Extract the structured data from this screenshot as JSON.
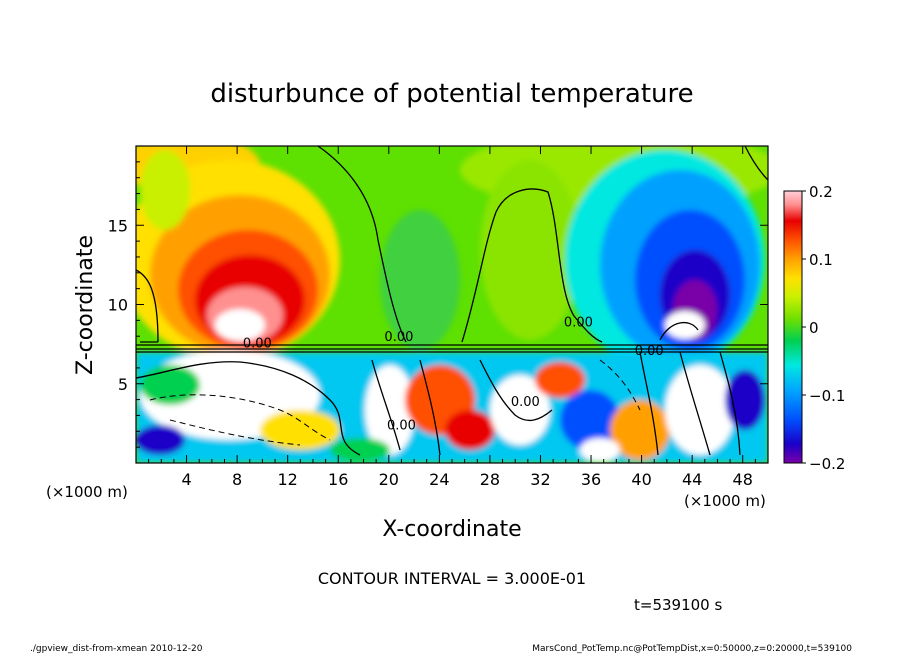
{
  "chart_data": {
    "type": "heatmap",
    "title": "disturbunce of potential temperature",
    "xlabel": "X-coordinate",
    "ylabel": "Z-coordinate",
    "x_unit_left": "(×1000 m)",
    "x_unit_right": "(×1000 m)",
    "xlim": [
      0,
      50
    ],
    "ylim": [
      0,
      20
    ],
    "x_ticks": [
      4,
      8,
      12,
      16,
      20,
      24,
      28,
      32,
      36,
      40,
      44,
      48
    ],
    "y_ticks": [
      5,
      10,
      15
    ],
    "colorbar": {
      "min": -0.2,
      "max": 0.2,
      "tick_values": [
        0.2,
        0.1,
        0,
        -0.1,
        -0.2
      ],
      "tick_labels": [
        "0.2",
        "0.1",
        "0",
        "−0.1",
        "−0.2"
      ]
    },
    "contour_labels": [
      {
        "text": "0.00",
        "x": 9.6,
        "z": 7.3
      },
      {
        "text": "0.00",
        "x": 20.8,
        "z": 7.7
      },
      {
        "text": "0.00",
        "x": 35.0,
        "z": 8.6
      },
      {
        "text": "0.00",
        "x": 40.6,
        "z": 6.8
      },
      {
        "text": "0.00",
        "x": 21.0,
        "z": 2.1
      },
      {
        "text": "0.00",
        "x": 30.8,
        "z": 3.6
      }
    ],
    "contour_interval_text": "CONTOUR INTERVAL = 3.000E-01",
    "time_text": "t=539100 s",
    "grid": false,
    "legend": "right"
  },
  "footer": {
    "left": "./gpview_dist-from-xmean  2010-12-20",
    "right": "MarsCond_PotTemp.nc@PotTempDist,x=0:50000,z=0:20000,t=539100"
  },
  "colors": {
    "palette": [
      "#7a00a8",
      "#1a00c8",
      "#0050ff",
      "#00a0ff",
      "#00e8e0",
      "#00d050",
      "#70e000",
      "#c8f000",
      "#ffe000",
      "#ffa000",
      "#ff5000",
      "#e80000",
      "#ff9090",
      "#ffd0d8",
      "#ffffff"
    ]
  }
}
